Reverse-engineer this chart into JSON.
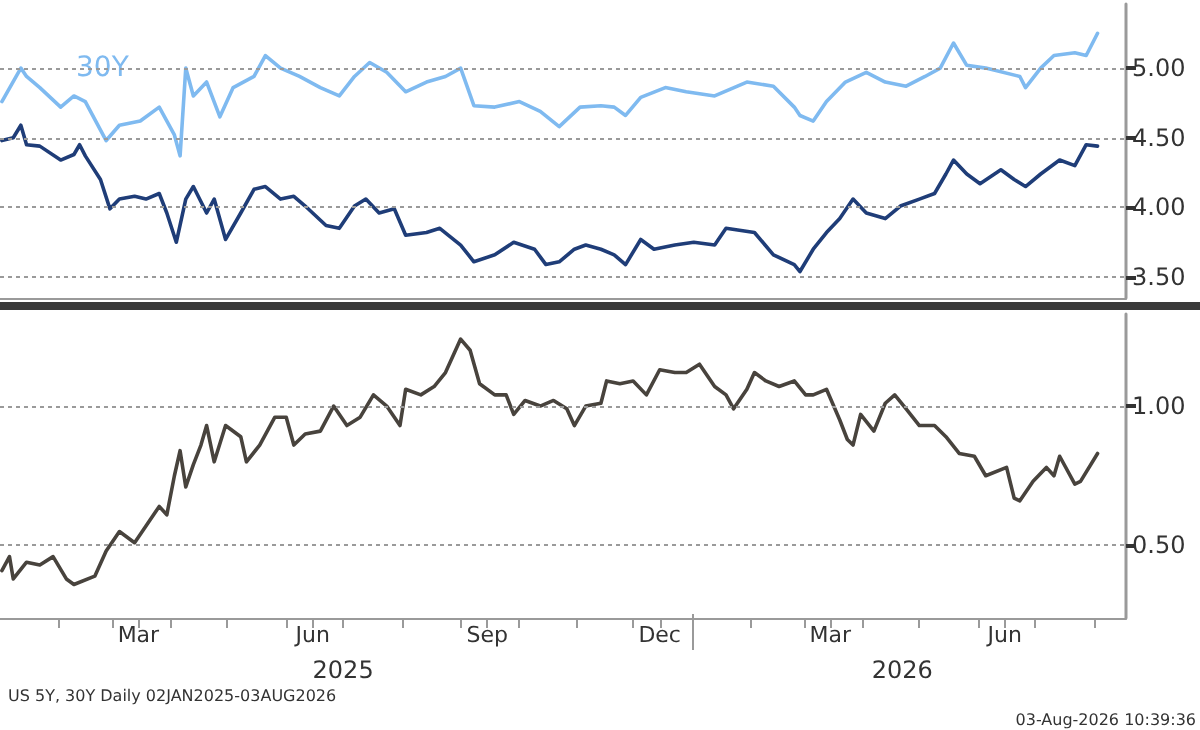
{
  "chart_data": [
    {
      "type": "line",
      "xlim": [
        "2025-01-01",
        "2026-08-18"
      ],
      "ylim": [
        3.35,
        5.46
      ],
      "yticks": [
        {
          "value": 3.5,
          "label": "3.50"
        },
        {
          "value": 4.0,
          "label": "4.00"
        },
        {
          "value": 4.5,
          "label": "4.50"
        },
        {
          "value": 5.0,
          "label": "5.00"
        }
      ],
      "tick_labels": "y",
      "grid": "y",
      "legend": "top left",
      "series": [
        {
          "name": "30Y",
          "color": "#7fbaf0",
          "x": [
            "2025-01-02",
            "2025-01-12",
            "2025-01-15",
            "2025-01-22",
            "2025-02-02",
            "2025-02-09",
            "2025-02-15",
            "2025-02-26",
            "2025-03-05",
            "2025-03-16",
            "2025-03-26",
            "2025-04-03",
            "2025-04-06",
            "2025-04-09",
            "2025-04-13",
            "2025-04-20",
            "2025-04-27",
            "2025-05-04",
            "2025-05-15",
            "2025-05-21",
            "2025-05-29",
            "2025-06-08",
            "2025-06-19",
            "2025-06-29",
            "2025-07-07",
            "2025-07-15",
            "2025-07-24",
            "2025-08-03",
            "2025-08-14",
            "2025-08-24",
            "2025-09-01",
            "2025-09-08",
            "2025-09-19",
            "2025-10-02",
            "2025-10-13",
            "2025-10-23",
            "2025-11-03",
            "2025-11-14",
            "2025-11-21",
            "2025-11-27",
            "2025-12-05",
            "2025-12-18",
            "2025-12-29",
            "2026-01-13",
            "2026-01-30",
            "2026-02-13",
            "2026-02-24",
            "2026-02-27",
            "2026-03-06",
            "2026-03-13",
            "2026-03-23",
            "2026-04-03",
            "2026-04-13",
            "2026-04-24",
            "2026-05-04",
            "2026-05-12",
            "2026-05-19",
            "2026-05-26",
            "2026-06-05",
            "2026-06-23",
            "2026-06-26",
            "2026-07-04",
            "2026-07-11",
            "2026-07-22",
            "2026-07-28",
            "2026-08-03"
          ],
          "values": [
            4.76,
            5.0,
            4.94,
            4.86,
            4.72,
            4.8,
            4.76,
            4.48,
            4.59,
            4.62,
            4.72,
            4.52,
            4.37,
            5.0,
            4.8,
            4.9,
            4.65,
            4.86,
            4.94,
            5.09,
            5.0,
            4.94,
            4.86,
            4.8,
            4.94,
            5.04,
            4.97,
            4.83,
            4.9,
            4.94,
            5.0,
            4.73,
            4.72,
            4.76,
            4.69,
            4.58,
            4.72,
            4.73,
            4.72,
            4.66,
            4.79,
            4.86,
            4.83,
            4.8,
            4.9,
            4.87,
            4.72,
            4.66,
            4.62,
            4.76,
            4.9,
            4.97,
            4.9,
            4.87,
            4.94,
            5.0,
            5.18,
            5.02,
            5.0,
            4.94,
            4.86,
            5.0,
            5.09,
            5.11,
            5.09,
            5.25
          ]
        },
        {
          "color": "#1f3d78",
          "x": [
            "2025-01-02",
            "2025-01-08",
            "2025-01-12",
            "2025-01-15",
            "2025-01-22",
            "2025-02-02",
            "2025-02-09",
            "2025-02-12",
            "2025-02-15",
            "2025-02-23",
            "2025-02-28",
            "2025-03-05",
            "2025-03-13",
            "2025-03-19",
            "2025-03-26",
            "2025-03-30",
            "2025-04-04",
            "2025-04-09",
            "2025-04-13",
            "2025-04-20",
            "2025-04-24",
            "2025-04-30",
            "2025-05-08",
            "2025-05-15",
            "2025-05-21",
            "2025-05-29",
            "2025-06-05",
            "2025-06-11",
            "2025-06-22",
            "2025-06-29",
            "2025-07-07",
            "2025-07-13",
            "2025-07-20",
            "2025-07-28",
            "2025-08-03",
            "2025-08-14",
            "2025-08-21",
            "2025-09-01",
            "2025-09-08",
            "2025-09-19",
            "2025-09-29",
            "2025-10-10",
            "2025-10-16",
            "2025-10-23",
            "2025-10-31",
            "2025-11-06",
            "2025-11-14",
            "2025-11-21",
            "2025-11-27",
            "2025-12-05",
            "2025-12-12",
            "2025-12-23",
            "2026-01-02",
            "2026-01-13",
            "2026-01-19",
            "2026-02-03",
            "2026-02-13",
            "2026-02-24",
            "2026-02-27",
            "2026-03-06",
            "2026-03-13",
            "2026-03-20",
            "2026-03-27",
            "2026-04-03",
            "2026-04-13",
            "2026-04-21",
            "2026-05-01",
            "2026-05-09",
            "2026-05-15",
            "2026-05-19",
            "2026-05-26",
            "2026-06-02",
            "2026-06-13",
            "2026-06-20",
            "2026-06-26",
            "2026-07-04",
            "2026-07-14",
            "2026-07-22",
            "2026-07-28",
            "2026-08-03"
          ],
          "values": [
            4.48,
            4.5,
            4.59,
            4.45,
            4.44,
            4.34,
            4.38,
            4.45,
            4.37,
            4.2,
            3.99,
            4.06,
            4.08,
            4.06,
            4.1,
            3.96,
            3.75,
            4.06,
            4.15,
            3.96,
            4.06,
            3.77,
            3.96,
            4.13,
            4.15,
            4.06,
            4.08,
            4.01,
            3.87,
            3.85,
            4.01,
            4.06,
            3.96,
            3.99,
            3.8,
            3.82,
            3.85,
            3.73,
            3.61,
            3.66,
            3.75,
            3.7,
            3.59,
            3.61,
            3.7,
            3.73,
            3.7,
            3.66,
            3.59,
            3.77,
            3.7,
            3.73,
            3.75,
            3.73,
            3.85,
            3.82,
            3.66,
            3.59,
            3.54,
            3.7,
            3.82,
            3.92,
            4.06,
            3.96,
            3.92,
            4.01,
            4.06,
            4.1,
            4.24,
            4.34,
            4.24,
            4.17,
            4.27,
            4.2,
            4.15,
            4.24,
            4.34,
            4.3,
            4.45,
            4.44
          ]
        }
      ]
    },
    {
      "type": "line",
      "xlim": [
        "2025-01-01",
        "2026-08-18"
      ],
      "ylim": [
        0.24,
        1.33
      ],
      "yticks": [
        {
          "value": 0.5,
          "label": "0.50"
        },
        {
          "value": 1.0,
          "label": "1.00"
        }
      ],
      "grid": "y",
      "xticks": [
        {
          "value": "2025-02-01",
          "label": null
        },
        {
          "value": "2025-03-01",
          "label": null
        },
        {
          "value": "2025-03-15",
          "label": "Mar"
        },
        {
          "value": "2025-04-01",
          "label": null
        },
        {
          "value": "2025-05-01",
          "label": null
        },
        {
          "value": "2025-06-01",
          "label": null
        },
        {
          "value": "2025-06-15",
          "label": "Jun"
        },
        {
          "value": "2025-07-01",
          "label": null
        },
        {
          "value": "2025-08-01",
          "label": null
        },
        {
          "value": "2025-09-01",
          "label": null
        },
        {
          "value": "2025-09-15",
          "label": "Sep"
        },
        {
          "value": "2025-10-01",
          "label": null
        },
        {
          "value": "2025-11-01",
          "label": null
        },
        {
          "value": "2025-12-01",
          "label": null
        },
        {
          "value": "2025-12-15",
          "label": "Dec"
        },
        {
          "value": "2026-01-01",
          "label": null
        },
        {
          "value": "2026-02-01",
          "label": null
        },
        {
          "value": "2026-03-01",
          "label": null
        },
        {
          "value": "2026-03-15",
          "label": "Mar"
        },
        {
          "value": "2026-04-01",
          "label": null
        },
        {
          "value": "2026-05-01",
          "label": null
        },
        {
          "value": "2026-06-01",
          "label": null
        },
        {
          "value": "2026-06-15",
          "label": "Jun"
        },
        {
          "value": "2026-07-01",
          "label": null
        },
        {
          "value": "2026-08-01",
          "label": null
        }
      ],
      "x2lim": [
        "2025-01-01",
        "2026-08-18"
      ],
      "x2ticks": [
        {
          "value": "2025-07-01",
          "label": "2025"
        },
        {
          "value": "2026-01-01",
          "label": null
        },
        {
          "value": "2026-04-22",
          "label": "2026"
        }
      ],
      "annotations": [
        "US 5Y, 30Y Daily 02JAN2025-03AUG2026",
        "03-Aug-2026 10:39:36"
      ],
      "series": [
        {
          "color": "#48433d",
          "x": [
            "2025-01-02",
            "2025-01-06",
            "2025-01-08",
            "2025-01-15",
            "2025-01-22",
            "2025-01-29",
            "2025-02-05",
            "2025-02-09",
            "2025-02-20",
            "2025-02-26",
            "2025-03-05",
            "2025-03-13",
            "2025-03-19",
            "2025-03-26",
            "2025-03-30",
            "2025-04-03",
            "2025-04-06",
            "2025-04-09",
            "2025-04-13",
            "2025-04-17",
            "2025-04-20",
            "2025-04-24",
            "2025-04-30",
            "2025-05-08",
            "2025-05-11",
            "2025-05-18",
            "2025-05-26",
            "2025-06-01",
            "2025-06-05",
            "2025-06-11",
            "2025-06-19",
            "2025-06-26",
            "2025-07-03",
            "2025-07-10",
            "2025-07-17",
            "2025-07-24",
            "2025-07-31",
            "2025-08-03",
            "2025-08-11",
            "2025-08-18",
            "2025-08-24",
            "2025-09-01",
            "2025-09-06",
            "2025-09-11",
            "2025-09-19",
            "2025-09-25",
            "2025-09-29",
            "2025-10-05",
            "2025-10-13",
            "2025-10-20",
            "2025-10-27",
            "2025-10-31",
            "2025-11-06",
            "2025-11-14",
            "2025-11-17",
            "2025-11-24",
            "2025-12-01",
            "2025-12-08",
            "2025-12-15",
            "2025-12-23",
            "2025-12-29",
            "2026-01-05",
            "2026-01-13",
            "2026-01-19",
            "2026-01-23",
            "2026-01-30",
            "2026-02-03",
            "2026-02-09",
            "2026-02-16",
            "2026-02-24",
            "2026-03-02",
            "2026-03-06",
            "2026-03-13",
            "2026-03-20",
            "2026-03-24",
            "2026-03-27",
            "2026-03-31",
            "2026-04-07",
            "2026-04-13",
            "2026-04-18",
            "2026-04-24",
            "2026-05-01",
            "2026-05-09",
            "2026-05-15",
            "2026-05-22",
            "2026-05-30",
            "2026-06-05",
            "2026-06-16",
            "2026-06-20",
            "2026-06-23",
            "2026-06-30",
            "2026-07-07",
            "2026-07-11",
            "2026-07-14",
            "2026-07-22",
            "2026-07-25",
            "2026-08-03"
          ],
          "values": [
            0.41,
            0.46,
            0.38,
            0.44,
            0.43,
            0.46,
            0.38,
            0.36,
            0.39,
            0.48,
            0.55,
            0.51,
            0.57,
            0.64,
            0.61,
            0.75,
            0.84,
            0.71,
            0.79,
            0.86,
            0.93,
            0.8,
            0.93,
            0.89,
            0.8,
            0.86,
            0.96,
            0.96,
            0.86,
            0.9,
            0.91,
            1.0,
            0.93,
            0.96,
            1.04,
            1.0,
            0.93,
            1.06,
            1.04,
            1.07,
            1.12,
            1.24,
            1.2,
            1.08,
            1.04,
            1.04,
            0.97,
            1.02,
            1.0,
            1.02,
            0.99,
            0.93,
            1.0,
            1.01,
            1.09,
            1.08,
            1.09,
            1.04,
            1.13,
            1.12,
            1.12,
            1.15,
            1.07,
            1.04,
            0.99,
            1.06,
            1.12,
            1.09,
            1.07,
            1.09,
            1.04,
            1.04,
            1.06,
            0.95,
            0.88,
            0.86,
            0.97,
            0.91,
            1.01,
            1.04,
            0.99,
            0.93,
            0.93,
            0.89,
            0.83,
            0.82,
            0.75,
            0.78,
            0.67,
            0.66,
            0.73,
            0.78,
            0.75,
            0.82,
            0.72,
            0.73,
            0.83
          ]
        }
      ]
    }
  ]
}
